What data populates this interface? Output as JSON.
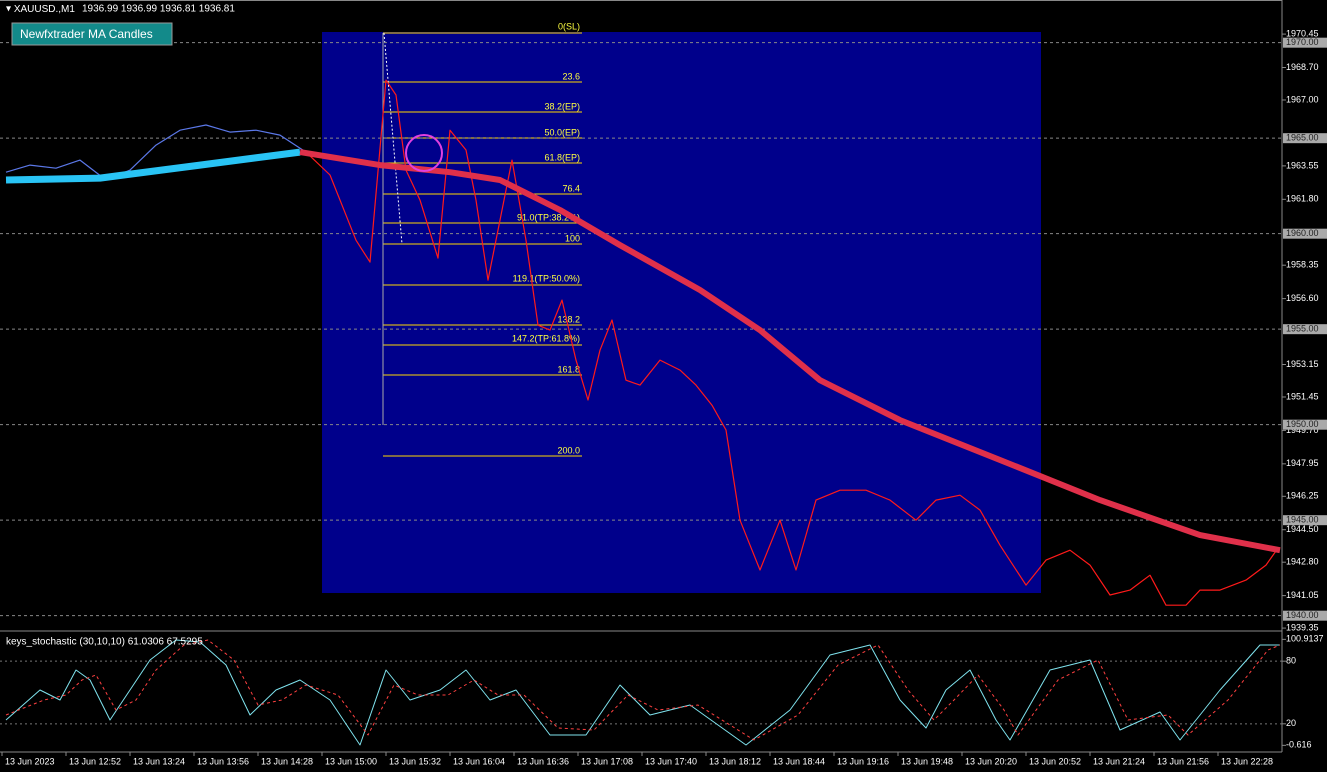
{
  "header": {
    "symbol": "XAUUSD.,M1",
    "ohlc": "1936.99 1936.99 1936.81 1936.81"
  },
  "button": "Newfxtrader MA Candles",
  "fibonacci": [
    "0(SL)",
    "23.6",
    "38.2(EP)",
    "50.0(EP)",
    "61.8(EP)",
    "76.4",
    "91.0(TP:38.2%)",
    "100",
    "119.1(TP:50.0%)",
    "138.2",
    "147.2(TP:61.8%)",
    "161.8",
    "200.0"
  ],
  "chart_data": [
    {
      "type": "line",
      "xlim": [
        0,
        641
      ],
      "ylim": [
        1939.25,
        1972.13
      ],
      "yticks": [
        1970.45,
        {
          "value": 1968.7,
          "label": "1968.70"
        },
        {
          "value": 1967,
          "label": "1967.00"
        },
        1963.55,
        {
          "value": 1961.8,
          "label": "1961.80"
        },
        1958.35,
        {
          "value": 1956.6,
          "label": "1956.60"
        },
        1953.15,
        1951.45,
        {
          "value": 1949.7,
          "label": "1949.70"
        },
        1947.95,
        1946.25,
        {
          "value": 1944.5,
          "label": "1944.50"
        },
        {
          "value": 1942.8,
          "label": "1942.80"
        },
        1941.05,
        1939.35
      ],
      "levels": [
        {
          "value": 1970,
          "label": "1970.00"
        },
        {
          "value": 1965,
          "label": "1965.00"
        },
        {
          "value": 1960,
          "label": "1960.00"
        },
        {
          "value": 1955,
          "label": "1955.00"
        },
        {
          "value": 1950,
          "label": "1950.00"
        },
        {
          "value": 1945,
          "label": "1945.00"
        },
        {
          "value": 1940,
          "label": "1940.00"
        }
      ],
      "xticks": [
        {
          "value": 0,
          "label": "13 Jun 2023"
        },
        {
          "value": 32,
          "label": "13 Jun 12:52"
        },
        {
          "value": 64,
          "label": "13 Jun 13:24"
        },
        {
          "value": 96,
          "label": "13 Jun 13:56"
        },
        {
          "value": 128,
          "label": "13 Jun 14:28"
        },
        {
          "value": 160,
          "label": "13 Jun 15:00"
        },
        {
          "value": 192,
          "label": "13 Jun 15:32"
        },
        {
          "value": 224,
          "label": "13 Jun 16:04"
        },
        {
          "value": 256,
          "label": "13 Jun 16:36"
        },
        {
          "value": 288,
          "label": "13 Jun 17:08"
        },
        {
          "value": 320,
          "label": "13 Jun 17:40"
        },
        {
          "value": 352,
          "label": "13 Jun 18:12"
        },
        {
          "value": 384,
          "label": "13 Jun 18:44"
        },
        {
          "value": 416,
          "label": "13 Jun 19:16"
        },
        {
          "value": 448,
          "label": "13 Jun 19:48"
        },
        {
          "value": 480,
          "label": "13 Jun 20:20"
        },
        {
          "value": 512,
          "label": "13 Jun 20:52"
        },
        {
          "value": 544,
          "label": "13 Jun 21:24"
        },
        {
          "value": 576,
          "label": "13 Jun 21:56"
        },
        {
          "value": 608,
          "label": "13 Jun 22:28"
        }
      ],
      "series": [
        {
          "color": "#5b78e8",
          "width": 1.2,
          "x": [
            3,
            15,
            28,
            40,
            53,
            65,
            78,
            90,
            103,
            115,
            128,
            140,
            153
          ],
          "values": [
            1963.22,
            1963.59,
            1963.43,
            1963.85,
            1962.81,
            1963.33,
            1964.64,
            1965.42,
            1965.69,
            1965.32,
            1965.42,
            1965.16,
            1964.27
          ]
        },
        {
          "color": "#ff1a1a",
          "width": 1.2,
          "x": [
            153,
            165,
            178,
            185,
            193,
            198,
            203,
            210,
            219,
            225,
            233,
            238,
            244,
            250,
            256,
            263,
            269,
            275,
            281,
            288,
            294,
            300,
            306,
            313,
            320,
            330,
            340,
            348,
            356,
            363,
            370,
            380,
            390,
            398,
            408,
            420,
            433,
            445,
            458,
            468,
            480,
            490,
            500,
            513,
            523,
            535,
            545,
            555,
            565,
            575,
            583,
            593,
            600,
            610,
            623,
            633,
            639
          ],
          "values": [
            1964.27,
            1963.07,
            1959.66,
            1958.51,
            1968.04,
            1967.26,
            1963.33,
            1961.76,
            1958.72,
            1965.42,
            1964.38,
            1961.76,
            1957.57,
            1960.71,
            1963.85,
            1959.66,
            1955.21,
            1954.95,
            1956.52,
            1953.38,
            1951.29,
            1953.9,
            1955.48,
            1952.33,
            1952.07,
            1953.38,
            1952.86,
            1952.07,
            1951.02,
            1949.72,
            1945,
            1942.39,
            1945,
            1942.39,
            1946.05,
            1946.57,
            1946.57,
            1946.05,
            1945,
            1946.05,
            1946.31,
            1945.53,
            1943.69,
            1941.6,
            1942.91,
            1943.43,
            1942.65,
            1941.08,
            1941.34,
            1942.12,
            1940.55,
            1940.55,
            1941.34,
            1941.34,
            1941.86,
            1942.65,
            1943.54
          ]
        },
        {
          "color": "#29c4f5",
          "width": 7,
          "x": [
            3,
            50,
            100,
            150
          ],
          "values": [
            1962.81,
            1962.91,
            1963.59,
            1964.27
          ]
        },
        {
          "color": "#e0304a",
          "width": 6,
          "x": [
            150,
            190,
            225,
            250,
            280,
            310,
            350,
            380,
            410,
            450,
            500,
            550,
            600,
            640
          ],
          "values": [
            1964.27,
            1963.59,
            1963.22,
            1962.81,
            1961.24,
            1959.4,
            1957.05,
            1954.95,
            1952.33,
            1950.24,
            1948.15,
            1946.05,
            1944.22,
            1943.43
          ]
        }
      ]
    },
    {
      "type": "line",
      "title": "keys_stochastic (30,10,10) 61.0306 67.5295",
      "xlim": [
        0,
        641
      ],
      "ylim": [
        -7,
        107
      ],
      "yticks": [
        100.9137,
        80,
        20,
        -0.616
      ],
      "dotted": [
        80,
        20
      ],
      "series": [
        {
          "color": "#7fe3ee",
          "width": 1,
          "x": [
            3,
            20,
            30,
            38,
            45,
            55,
            65,
            75,
            88,
            100,
            113,
            125,
            138,
            150,
            165,
            180,
            193,
            205,
            220,
            233,
            245,
            258,
            275,
            293,
            310,
            325,
            345,
            373,
            395,
            415,
            435,
            450,
            463,
            473,
            485,
            498,
            505,
            525,
            545,
            560,
            580,
            590,
            610,
            630,
            640
          ],
          "values": [
            23.7,
            52.4,
            42.8,
            71.6,
            62,
            23.7,
            52.4,
            81.1,
            100.3,
            98.4,
            76.3,
            28.4,
            52.4,
            62,
            42.8,
            -0.3,
            71.6,
            42.8,
            52.4,
            71.6,
            42.8,
            52.4,
            9.3,
            9.3,
            57.2,
            28.4,
            38,
            -0.3,
            33.2,
            85.9,
            95.5,
            42.8,
            16,
            52.4,
            71.6,
            23.7,
            4.5,
            71.6,
            81.1,
            14.1,
            31.3,
            4.5,
            52.4,
            95.5,
            95.5
          ]
        },
        {
          "color": "#ff4040",
          "width": 1,
          "dash": "3,3",
          "x": [
            3,
            22,
            33,
            41,
            48,
            58,
            68,
            78,
            92,
            104,
            117,
            129,
            141,
            153,
            169,
            184,
            197,
            209,
            224,
            237,
            249,
            262,
            279,
            297,
            314,
            329,
            349,
            377,
            399,
            419,
            439,
            454,
            467,
            477,
            489,
            502,
            509,
            529,
            549,
            564,
            584,
            594,
            614,
            634,
            640
          ],
          "values": [
            28.4,
            42.8,
            47.6,
            62,
            66.8,
            33.2,
            42.8,
            71.6,
            95.5,
            100.3,
            81.1,
            38,
            42.8,
            57.2,
            47.6,
            9.3,
            57.2,
            47.6,
            47.6,
            62,
            47.6,
            47.6,
            16,
            14.1,
            47.6,
            33.2,
            38,
            4.5,
            28.4,
            76.3,
            95.5,
            52.4,
            23.7,
            42.8,
            66.8,
            33.2,
            9.3,
            62,
            81.1,
            23.7,
            28.4,
            9.3,
            42.8,
            90.7,
            95.5
          ]
        }
      ]
    }
  ]
}
